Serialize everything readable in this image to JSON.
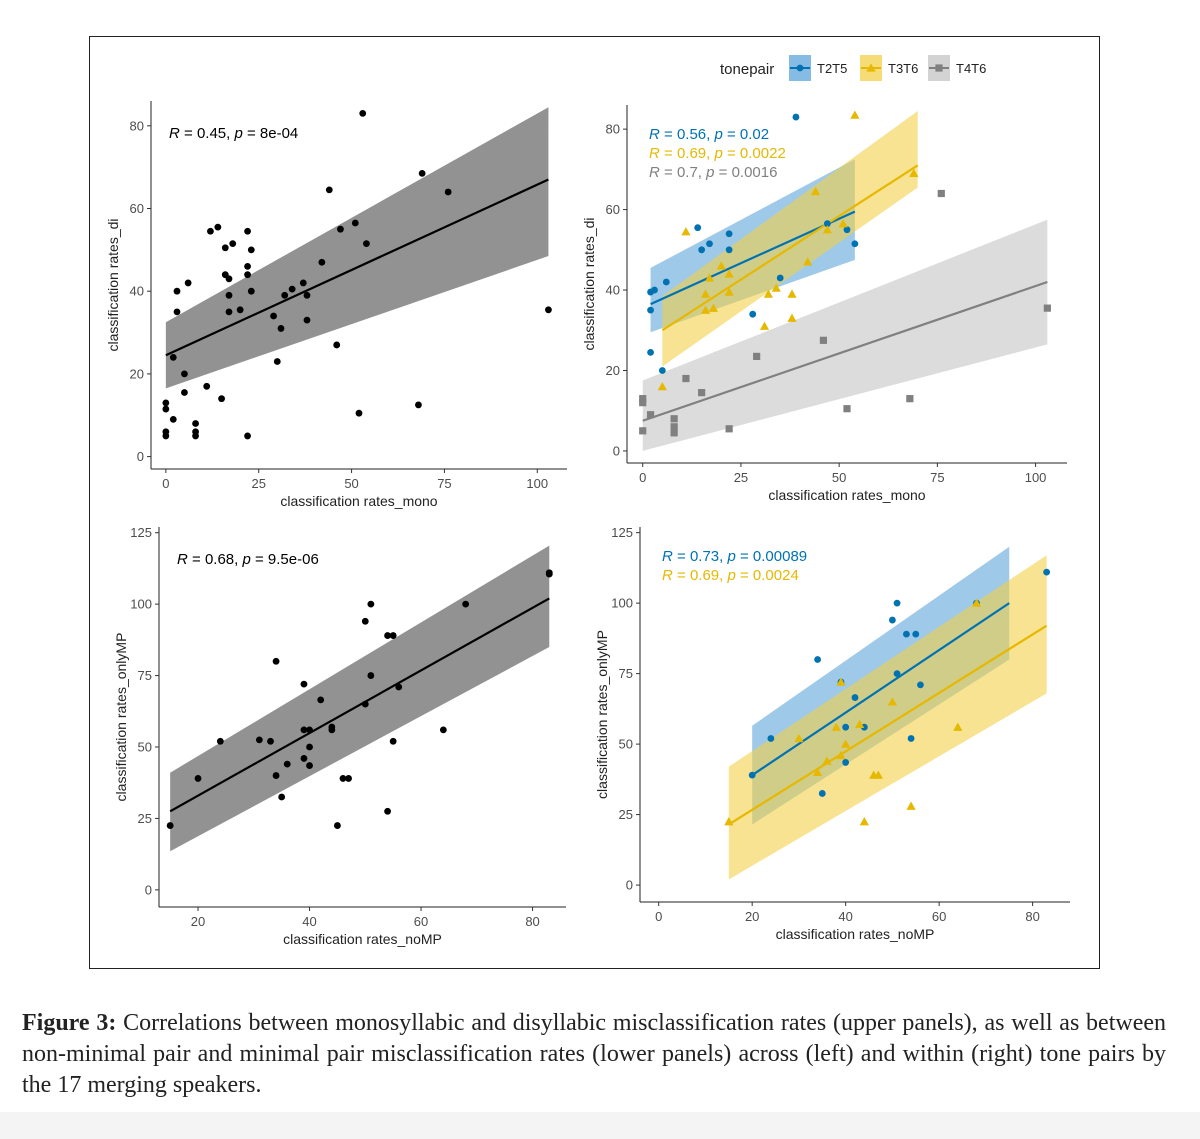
{
  "caption": {
    "label": "Figure 3:",
    "text": "Correlations between monosyllabic and disyllabic misclassification rates (upper panels), as well as between non-minimal pair and minimal pair misclassification rates (lower panels) across (left) and within (right) tone pairs by the 17 merging speakers."
  },
  "legend": {
    "title": "tonepair",
    "items": [
      {
        "name": "T2T5",
        "color": "#0072B2",
        "shape": "circle"
      },
      {
        "name": "T3T6",
        "color": "#E6B800",
        "shape": "triangle"
      },
      {
        "name": "T4T6",
        "color": "#808080",
        "shape": "square"
      }
    ]
  },
  "colors": {
    "black": "#000000",
    "ribbon_all": "#8c8c8c",
    "ribbon_T2T5": "#5da5db",
    "ribbon_T3T6": "#f2d04a",
    "ribbon_T4T6": "#c4c4c4"
  },
  "chart_data": [
    {
      "id": "top-left",
      "type": "scatter",
      "xlabel": "classification rates_mono",
      "ylabel": "classification rates_di",
      "xlim": [
        -4,
        108
      ],
      "ylim": [
        -3,
        86
      ],
      "xticks": [
        0,
        25,
        50,
        75,
        100
      ],
      "yticks": [
        0,
        20,
        40,
        60,
        80
      ],
      "annotations": [
        {
          "r": "0.45",
          "p": "8e-04",
          "color": "#000000"
        }
      ],
      "series": [
        {
          "name": "all",
          "color": "#000000",
          "points": [
            [
              0,
              13
            ],
            [
              0,
              11.5
            ],
            [
              0,
              6
            ],
            [
              0,
              5
            ],
            [
              2,
              9
            ],
            [
              2,
              24
            ],
            [
              3,
              35
            ],
            [
              3,
              40
            ],
            [
              5,
              20
            ],
            [
              5,
              15.5
            ],
            [
              6,
              42
            ],
            [
              8,
              8
            ],
            [
              8,
              6
            ],
            [
              8,
              5
            ],
            [
              11,
              17
            ],
            [
              12,
              54.5
            ],
            [
              14,
              55.5
            ],
            [
              15,
              14
            ],
            [
              16,
              50.5
            ],
            [
              16,
              44
            ],
            [
              17,
              43
            ],
            [
              17,
              39
            ],
            [
              17,
              35
            ],
            [
              18,
              51.5
            ],
            [
              20,
              35.5
            ],
            [
              22,
              54.5
            ],
            [
              22,
              46
            ],
            [
              22,
              44
            ],
            [
              22,
              5
            ],
            [
              23,
              50
            ],
            [
              23,
              40
            ],
            [
              29,
              34
            ],
            [
              30,
              23
            ],
            [
              31,
              31
            ],
            [
              32,
              39
            ],
            [
              34,
              40.5
            ],
            [
              37,
              42
            ],
            [
              38,
              39
            ],
            [
              38,
              33
            ],
            [
              42,
              47
            ],
            [
              44,
              64.5
            ],
            [
              46,
              27
            ],
            [
              47,
              55
            ],
            [
              51,
              56.5
            ],
            [
              52,
              10.5
            ],
            [
              53,
              83
            ],
            [
              54,
              51.5
            ],
            [
              68,
              12.5
            ],
            [
              69,
              68.5
            ],
            [
              76,
              64
            ],
            [
              103,
              35.5
            ]
          ],
          "fit": {
            "x": [
              0,
              103
            ],
            "y": [
              24.5,
              67
            ],
            "lower": [
              16.5,
              48.5
            ],
            "upper": [
              32.5,
              84.5
            ]
          }
        }
      ]
    },
    {
      "id": "top-right",
      "type": "scatter",
      "xlabel": "classification rates_mono",
      "ylabel": "classification rates_di",
      "xlim": [
        -4,
        108
      ],
      "ylim": [
        -3,
        86
      ],
      "xticks": [
        0,
        25,
        50,
        75,
        100
      ],
      "yticks": [
        0,
        20,
        40,
        60,
        80
      ],
      "annotations": [
        {
          "r": "0.56",
          "p": "0.02",
          "color": "#0072B2"
        },
        {
          "r": "0.69",
          "p": "0.0022",
          "color": "#E6B800"
        },
        {
          "r": "0.7",
          "p": "0.0016",
          "color": "#808080"
        }
      ],
      "series": [
        {
          "name": "T2T5",
          "color": "#0072B2",
          "ribbon": "#5da5db",
          "points": [
            [
              2,
              35
            ],
            [
              2,
              24.5
            ],
            [
              2,
              39.5
            ],
            [
              3,
              40
            ],
            [
              5,
              20
            ],
            [
              6,
              42
            ],
            [
              14,
              55.5
            ],
            [
              15,
              50
            ],
            [
              17,
              51.5
            ],
            [
              22,
              54
            ],
            [
              22,
              50
            ],
            [
              28,
              34
            ],
            [
              35,
              43
            ],
            [
              39,
              83
            ],
            [
              47,
              56.5
            ],
            [
              52,
              55
            ],
            [
              54,
              51.5
            ]
          ],
          "fit": {
            "x": [
              2,
              54
            ],
            "y": [
              36.5,
              59.5
            ],
            "lower": [
              29.5,
              47.5
            ],
            "upper": [
              45.5,
              72.5
            ]
          }
        },
        {
          "name": "T3T6",
          "color": "#E6B800",
          "ribbon": "#f2d04a",
          "points": [
            [
              5,
              16
            ],
            [
              11,
              54.5
            ],
            [
              16,
              35
            ],
            [
              16,
              39
            ],
            [
              17,
              43
            ],
            [
              18,
              35.5
            ],
            [
              20,
              46
            ],
            [
              22,
              44
            ],
            [
              22,
              39.5
            ],
            [
              31,
              31
            ],
            [
              32,
              39
            ],
            [
              34,
              40.5
            ],
            [
              38,
              39
            ],
            [
              38,
              33
            ],
            [
              42,
              47
            ],
            [
              44,
              64.5
            ],
            [
              47,
              55
            ],
            [
              51,
              56.5
            ],
            [
              54,
              83.5
            ],
            [
              69,
              69
            ]
          ],
          "fit": {
            "x": [
              5,
              70
            ],
            "y": [
              30,
              71
            ],
            "lower": [
              21,
              65.5
            ],
            "upper": [
              38.5,
              84.5
            ]
          }
        },
        {
          "name": "T4T6",
          "color": "#808080",
          "ribbon": "#c4c4c4",
          "points": [
            [
              0,
              13
            ],
            [
              0,
              12
            ],
            [
              0,
              5
            ],
            [
              2,
              9
            ],
            [
              8,
              8
            ],
            [
              8,
              6
            ],
            [
              8,
              4.5
            ],
            [
              11,
              18
            ],
            [
              15,
              14.5
            ],
            [
              22,
              5.5
            ],
            [
              29,
              23.5
            ],
            [
              46,
              27.5
            ],
            [
              52,
              10.5
            ],
            [
              68,
              13
            ],
            [
              76,
              64
            ],
            [
              103,
              35.5
            ]
          ],
          "fit": {
            "x": [
              0,
              103
            ],
            "y": [
              7.5,
              42
            ],
            "lower": [
              0,
              26.5
            ],
            "upper": [
              17.5,
              57.5
            ]
          }
        }
      ]
    },
    {
      "id": "bottom-left",
      "type": "scatter",
      "xlabel": "classification rates_noMP",
      "ylabel": "classification rates_onlyMP",
      "xlim": [
        13,
        86
      ],
      "ylim": [
        -6,
        127
      ],
      "xticks": [
        20,
        40,
        60,
        80
      ],
      "yticks": [
        0,
        25,
        50,
        75,
        100,
        125
      ],
      "annotations": [
        {
          "r": "0.68",
          "p": "9.5e-06",
          "color": "#000000"
        }
      ],
      "series": [
        {
          "name": "all",
          "color": "#000000",
          "points": [
            [
              15,
              22.5
            ],
            [
              20,
              39
            ],
            [
              24,
              52
            ],
            [
              31,
              52.5
            ],
            [
              33,
              52
            ],
            [
              34,
              40
            ],
            [
              34,
              80
            ],
            [
              35,
              32.5
            ],
            [
              36,
              44
            ],
            [
              39,
              72
            ],
            [
              39,
              56
            ],
            [
              39,
              46
            ],
            [
              40,
              50
            ],
            [
              40,
              56
            ],
            [
              40,
              43.5
            ],
            [
              42,
              66.5
            ],
            [
              44,
              56
            ],
            [
              44,
              57
            ],
            [
              45,
              22.5
            ],
            [
              46,
              39
            ],
            [
              47,
              39
            ],
            [
              50,
              94
            ],
            [
              50,
              65
            ],
            [
              51,
              75
            ],
            [
              51,
              100
            ],
            [
              54,
              89
            ],
            [
              54,
              27.5
            ],
            [
              55,
              52
            ],
            [
              55,
              89
            ],
            [
              56,
              71
            ],
            [
              64,
              56
            ],
            [
              68,
              100
            ],
            [
              83,
              111
            ],
            [
              83,
              110.5
            ]
          ],
          "fit": {
            "x": [
              15,
              83
            ],
            "y": [
              27.5,
              102
            ],
            "lower": [
              13.5,
              85
            ],
            "upper": [
              41,
              120.5
            ]
          }
        }
      ]
    },
    {
      "id": "bottom-right",
      "type": "scatter",
      "xlabel": "classification rates_noMP",
      "ylabel": "classification rates_onlyMP",
      "xlim": [
        -4,
        88
      ],
      "ylim": [
        -6,
        127
      ],
      "xticks": [
        0,
        20,
        40,
        60,
        80
      ],
      "yticks": [
        0,
        25,
        50,
        75,
        100,
        125
      ],
      "annotations": [
        {
          "r": "0.73",
          "p": "0.00089",
          "color": "#0072B2"
        },
        {
          "r": "0.69",
          "p": "0.0024",
          "color": "#E6B800"
        }
      ],
      "series": [
        {
          "name": "T2T5",
          "color": "#0072B2",
          "ribbon": "#5da5db",
          "points": [
            [
              20,
              39
            ],
            [
              24,
              52
            ],
            [
              34,
              80
            ],
            [
              35,
              32.5
            ],
            [
              39,
              72
            ],
            [
              40,
              56
            ],
            [
              40,
              43.5
            ],
            [
              42,
              66.5
            ],
            [
              44,
              56
            ],
            [
              50,
              94
            ],
            [
              51,
              75
            ],
            [
              51,
              100
            ],
            [
              53,
              89
            ],
            [
              54,
              52
            ],
            [
              55,
              89
            ],
            [
              56,
              71
            ],
            [
              68,
              100
            ],
            [
              83,
              111
            ]
          ],
          "fit": {
            "x": [
              20,
              75
            ],
            "y": [
              39,
              100
            ],
            "lower": [
              21.5,
              80
            ],
            "upper": [
              56.5,
              120
            ]
          }
        },
        {
          "name": "T3T6",
          "color": "#E6B800",
          "ribbon": "#f2d04a",
          "points": [
            [
              15,
              22.5
            ],
            [
              30,
              52
            ],
            [
              34,
              40
            ],
            [
              36,
              44
            ],
            [
              38,
              56
            ],
            [
              39,
              72
            ],
            [
              39,
              46
            ],
            [
              40,
              50
            ],
            [
              43,
              57
            ],
            [
              44,
              22.5
            ],
            [
              46,
              39
            ],
            [
              47,
              39
            ],
            [
              50,
              65
            ],
            [
              54,
              28
            ],
            [
              64,
              56
            ],
            [
              68,
              100
            ]
          ],
          "fit": {
            "x": [
              15,
              83
            ],
            "y": [
              21.5,
              92
            ],
            "lower": [
              2,
              68
            ],
            "upper": [
              42,
              117
            ]
          }
        }
      ]
    }
  ]
}
